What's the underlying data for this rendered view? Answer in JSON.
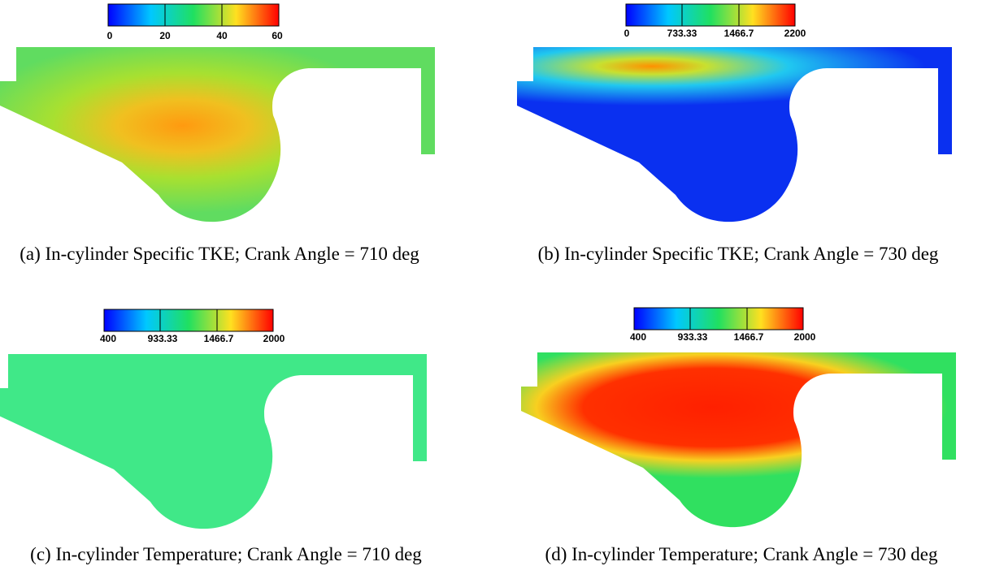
{
  "panels": [
    {
      "colorbar": {
        "ticks": [
          "0",
          "20",
          "40",
          "60"
        ]
      },
      "caption": "(a) In-cylinder Specific TKE; Crank Angle = 710 deg"
    },
    {
      "colorbar": {
        "ticks": [
          "0",
          "733.33",
          "1466.7",
          "2200"
        ]
      },
      "caption": "(b) In-cylinder Specific TKE; Crank Angle = 730 deg"
    },
    {
      "colorbar": {
        "ticks": [
          "400",
          "933.33",
          "1466.7",
          "2000"
        ]
      },
      "caption": "(c) In-cylinder Temperature; Crank Angle = 710 deg"
    },
    {
      "colorbar": {
        "ticks": [
          "400",
          "933.33",
          "1466.7",
          "2000"
        ]
      },
      "caption": "(d) In-cylinder Temperature; Crank Angle = 730 deg"
    }
  ]
}
